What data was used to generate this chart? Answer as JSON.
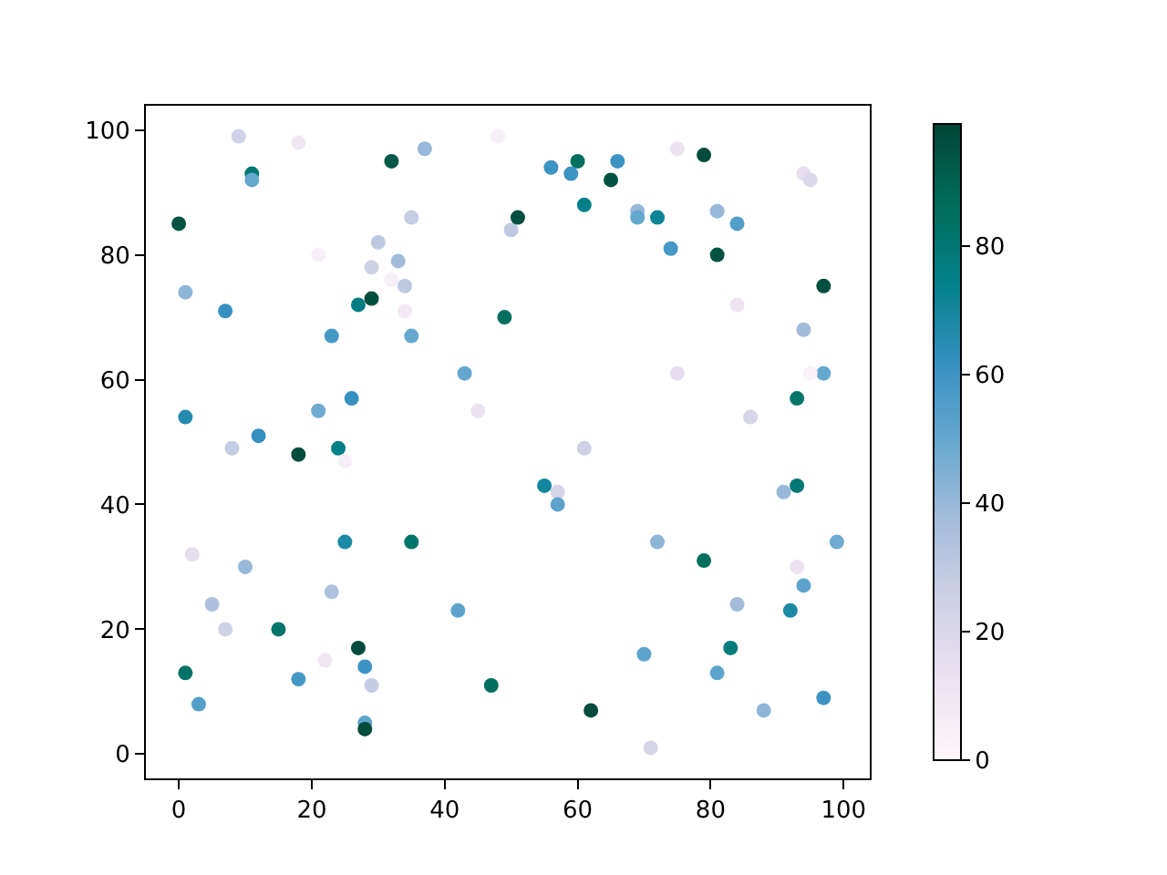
{
  "chart_data": {
    "type": "scatter",
    "x": [
      0,
      9,
      18,
      11,
      11,
      32,
      37,
      48,
      1,
      7,
      23,
      21,
      30,
      29,
      33,
      35,
      34,
      32,
      34,
      29,
      27,
      35,
      49,
      43,
      45,
      1,
      21,
      26,
      12,
      8,
      24,
      50,
      51,
      56,
      60,
      59,
      66,
      65,
      75,
      79,
      61,
      69,
      69,
      72,
      81,
      84,
      74,
      81,
      94,
      95,
      97,
      84,
      94,
      75,
      97,
      95,
      93,
      86,
      61,
      18,
      25,
      2,
      10,
      25,
      35,
      5,
      23,
      42,
      7,
      15,
      22,
      27,
      28,
      29,
      1,
      18,
      47,
      3,
      28,
      28,
      55,
      57,
      57,
      91,
      93,
      99,
      72,
      79,
      93,
      94,
      84,
      92,
      83,
      70,
      81,
      62,
      88,
      97,
      71
    ],
    "values": [
      85,
      99,
      98,
      93,
      92,
      95,
      97,
      99,
      74,
      71,
      67,
      80,
      82,
      78,
      79,
      86,
      75,
      76,
      71,
      73,
      72,
      67,
      70,
      61,
      55,
      54,
      55,
      57,
      51,
      49,
      49,
      84,
      86,
      94,
      95,
      93,
      95,
      92,
      97,
      96,
      88,
      87,
      86,
      86,
      87,
      85,
      81,
      80,
      93,
      92,
      75,
      72,
      68,
      61,
      61,
      61,
      57,
      54,
      49,
      48,
      47,
      32,
      30,
      34,
      34,
      24,
      26,
      23,
      20,
      20,
      15,
      17,
      14,
      11,
      13,
      12,
      11,
      8,
      5,
      4,
      43,
      42,
      40,
      42,
      43,
      34,
      34,
      31,
      30,
      27,
      24,
      23,
      17,
      16,
      13,
      7,
      7,
      9,
      1
    ],
    "cvalues": [
      95,
      25,
      10,
      80,
      50,
      93,
      40,
      5,
      42,
      62,
      58,
      5,
      30,
      25,
      38,
      28,
      30,
      5,
      8,
      96,
      76,
      50,
      85,
      50,
      12,
      66,
      48,
      62,
      62,
      28,
      75,
      30,
      96,
      60,
      85,
      60,
      60,
      95,
      12,
      97,
      75,
      40,
      50,
      72,
      40,
      55,
      58,
      95,
      15,
      20,
      96,
      12,
      38,
      15,
      50,
      3,
      82,
      22,
      25,
      97,
      5,
      15,
      40,
      68,
      82,
      35,
      35,
      52,
      25,
      82,
      10,
      97,
      60,
      28,
      83,
      58,
      85,
      55,
      52,
      97,
      70,
      22,
      52,
      40,
      80,
      48,
      42,
      85,
      12,
      52,
      38,
      68,
      78,
      52,
      52,
      97,
      42,
      60,
      22
    ],
    "xlim": [
      -4.95,
      103.95
    ],
    "ylim": [
      -3.9,
      103.9
    ],
    "xticks": [
      0,
      20,
      40,
      60,
      80,
      100
    ],
    "yticks": [
      0,
      20,
      40,
      60,
      80,
      100
    ],
    "clim": [
      0,
      99
    ],
    "cticks": [
      0,
      20,
      40,
      60,
      80
    ],
    "marker": "circle"
  }
}
